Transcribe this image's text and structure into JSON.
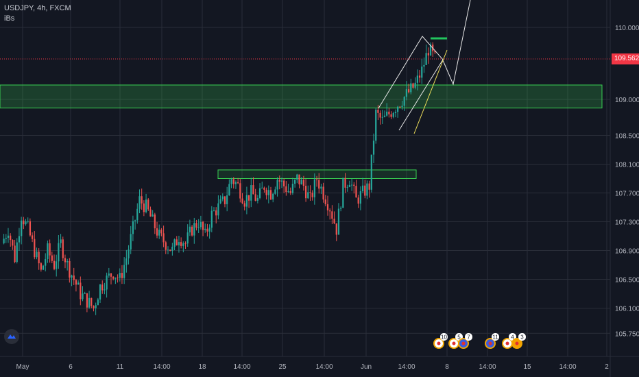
{
  "header": {
    "symbol_line": "USDJPY, 4h, FXCM",
    "indicator": "iBs"
  },
  "last_price": "109.562",
  "colors": {
    "up": "#26a69a",
    "down": "#ef5350",
    "zone": "#39d353",
    "drawing": "#e8e8e8",
    "trend": "#f0e05a",
    "badge": "#f23645",
    "grid": "#2a2e39"
  },
  "chart_data": {
    "type": "candlestick",
    "symbol": "USDJPY",
    "timeframe": "4h",
    "source": "FXCM",
    "y_ticks": [
      110.0,
      109.562,
      109.0,
      108.5,
      108.1,
      107.7,
      107.3,
      106.9,
      106.5,
      106.1,
      105.75
    ],
    "y_tick_labels": [
      "110.000",
      "109.562",
      "109.000",
      "108.500",
      "108.100",
      "107.700",
      "107.300",
      "106.900",
      "106.500",
      "106.100",
      "105.750"
    ],
    "x_ticks": [
      "May",
      "6",
      "11",
      "14:00",
      "18",
      "14:00",
      "25",
      "14:00",
      "Jun",
      "14:00",
      "8",
      "14:00",
      "15",
      "14:00",
      "2"
    ],
    "ylim": [
      105.6,
      110.2
    ],
    "last_value": 109.562,
    "support_zone": {
      "from": 108.88,
      "to": 109.2
    },
    "resistance_zone": {
      "from": 107.9,
      "to": 108.02
    },
    "path_close": [
      107.0,
      107.2,
      106.8,
      107.4,
      107.2,
      106.9,
      106.6,
      106.9,
      106.7,
      107.0,
      106.7,
      106.5,
      106.3,
      106.2,
      106.1,
      106.4,
      106.5,
      106.6,
      106.5,
      106.8,
      107.2,
      107.6,
      107.5,
      107.3,
      107.1,
      107.0,
      106.9,
      107.1,
      107.0,
      107.2,
      107.3,
      107.1,
      107.4,
      107.5,
      107.6,
      107.9,
      107.8,
      107.6,
      107.7,
      107.6,
      107.8,
      107.7,
      107.9,
      107.8,
      107.7,
      107.9,
      107.8,
      107.6,
      107.9,
      107.7,
      107.5,
      107.2,
      107.8,
      107.9,
      107.6,
      107.7,
      107.8,
      108.8,
      108.7,
      108.8,
      108.9,
      109.0,
      109.1,
      109.2,
      109.4,
      109.7,
      109.562
    ]
  },
  "events": [
    "10",
    "5",
    "7",
    "11",
    "4",
    "3"
  ]
}
